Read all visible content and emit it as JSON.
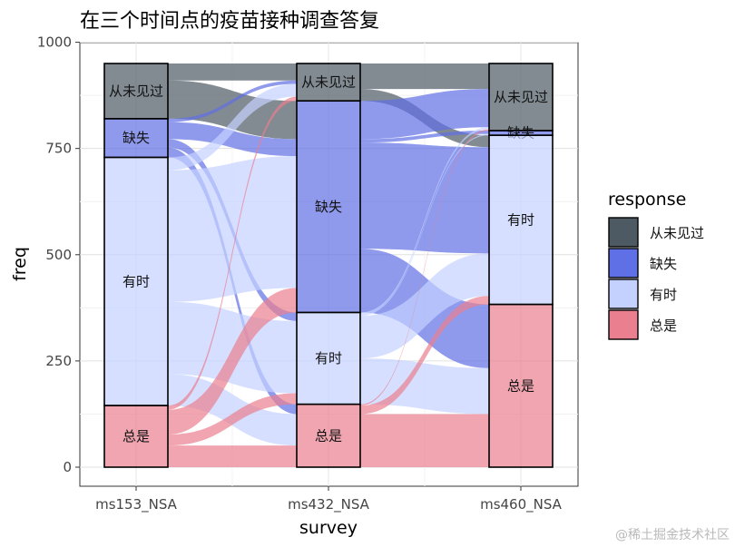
{
  "chart_data": {
    "type": "alluvial",
    "title": "在三个时间点的疫苗接种调查答复",
    "xlabel": "survey",
    "ylabel": "freq",
    "ylim": [
      0,
      1000
    ],
    "yticks": [
      0,
      250,
      500,
      750,
      1000
    ],
    "categories": [
      "ms153_NSA",
      "ms432_NSA",
      "ms460_NSA"
    ],
    "responses": [
      "从未见过",
      "缺失",
      "有时",
      "总是"
    ],
    "colors": {
      "从未见过": "#4d5a64",
      "缺失": "#5f6fe6",
      "有时": "#c4d1ff",
      "总是": "#e97f8f"
    },
    "strata": [
      {
        "survey": "ms153_NSA",
        "values": {
          "总是": 145,
          "有时": 584,
          "缺失": 91,
          "从未见过": 130
        }
      },
      {
        "survey": "ms432_NSA",
        "values": {
          "总是": 148,
          "有时": 216,
          "缺失": 498,
          "从未见过": 88
        }
      },
      {
        "survey": "ms460_NSA",
        "values": {
          "总是": 383,
          "有时": 398,
          "缺失": 11,
          "从未见过": 158
        }
      }
    ],
    "flows": [
      {
        "from": "ms153_NSA",
        "to": "ms432_NSA",
        "from_resp": "从未见过",
        "to_resp": "从未见过",
        "value": 40
      },
      {
        "from": "ms153_NSA",
        "to": "ms432_NSA",
        "from_resp": "从未见过",
        "to_resp": "缺失",
        "value": 90
      },
      {
        "from": "ms153_NSA",
        "to": "ms432_NSA",
        "from_resp": "缺失",
        "to_resp": "从未见过",
        "value": 8
      },
      {
        "from": "ms153_NSA",
        "to": "ms432_NSA",
        "from_resp": "缺失",
        "to_resp": "缺失",
        "value": 40
      },
      {
        "from": "ms153_NSA",
        "to": "ms432_NSA",
        "from_resp": "缺失",
        "to_resp": "有时",
        "value": 20
      },
      {
        "from": "ms153_NSA",
        "to": "ms432_NSA",
        "from_resp": "缺失",
        "to_resp": "总是",
        "value": 23
      },
      {
        "from": "ms153_NSA",
        "to": "ms432_NSA",
        "from_resp": "有时",
        "to_resp": "从未见过",
        "value": 30
      },
      {
        "from": "ms153_NSA",
        "to": "ms432_NSA",
        "from_resp": "有时",
        "to_resp": "缺失",
        "value": 310
      },
      {
        "from": "ms153_NSA",
        "to": "ms432_NSA",
        "from_resp": "有时",
        "to_resp": "有时",
        "value": 170
      },
      {
        "from": "ms153_NSA",
        "to": "ms432_NSA",
        "from_resp": "有时",
        "to_resp": "总是",
        "value": 74
      },
      {
        "from": "ms153_NSA",
        "to": "ms432_NSA",
        "from_resp": "总是",
        "to_resp": "从未见过",
        "value": 10
      },
      {
        "from": "ms153_NSA",
        "to": "ms432_NSA",
        "from_resp": "总是",
        "to_resp": "缺失",
        "value": 58
      },
      {
        "from": "ms153_NSA",
        "to": "ms432_NSA",
        "from_resp": "总是",
        "to_resp": "有时",
        "value": 26
      },
      {
        "from": "ms153_NSA",
        "to": "ms432_NSA",
        "from_resp": "总是",
        "to_resp": "总是",
        "value": 51
      },
      {
        "from": "ms432_NSA",
        "to": "ms460_NSA",
        "from_resp": "从未见过",
        "to_resp": "从未见过",
        "value": 60
      },
      {
        "from": "ms432_NSA",
        "to": "ms460_NSA",
        "from_resp": "从未见过",
        "to_resp": "有时",
        "value": 28
      },
      {
        "from": "ms432_NSA",
        "to": "ms460_NSA",
        "from_resp": "缺失",
        "to_resp": "从未见过",
        "value": 90
      },
      {
        "from": "ms432_NSA",
        "to": "ms460_NSA",
        "from_resp": "缺失",
        "to_resp": "缺失",
        "value": 8
      },
      {
        "from": "ms432_NSA",
        "to": "ms460_NSA",
        "from_resp": "缺失",
        "to_resp": "有时",
        "value": 250
      },
      {
        "from": "ms432_NSA",
        "to": "ms460_NSA",
        "from_resp": "缺失",
        "to_resp": "总是",
        "value": 150
      },
      {
        "from": "ms432_NSA",
        "to": "ms460_NSA",
        "from_resp": "有时",
        "to_resp": "从未见过",
        "value": 5
      },
      {
        "from": "ms432_NSA",
        "to": "ms460_NSA",
        "from_resp": "有时",
        "to_resp": "缺失",
        "value": 3
      },
      {
        "from": "ms432_NSA",
        "to": "ms460_NSA",
        "from_resp": "有时",
        "to_resp": "有时",
        "value": 100
      },
      {
        "from": "ms432_NSA",
        "to": "ms460_NSA",
        "from_resp": "有时",
        "to_resp": "总是",
        "value": 108
      },
      {
        "from": "ms432_NSA",
        "to": "ms460_NSA",
        "from_resp": "总是",
        "to_resp": "从未见过",
        "value": 3
      },
      {
        "from": "ms432_NSA",
        "to": "ms460_NSA",
        "from_resp": "总是",
        "to_resp": "有时",
        "value": 20
      },
      {
        "from": "ms432_NSA",
        "to": "ms460_NSA",
        "from_resp": "总是",
        "to_resp": "总是",
        "value": 125
      }
    ],
    "legend": {
      "title": "response",
      "position": "right"
    },
    "grid": true
  },
  "watermark": "@稀土掘金技术社区"
}
